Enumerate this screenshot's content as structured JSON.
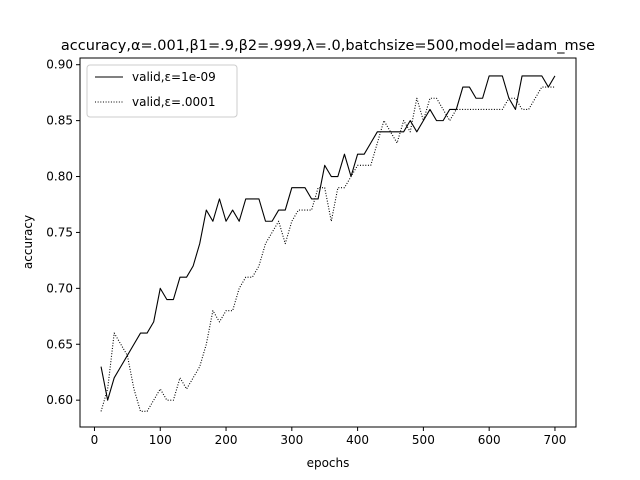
{
  "chart_data": {
    "type": "line",
    "title": "accuracy,α=.001,β1=.9,β2=.999,λ=.0,batchsize=500,model=adam_mse",
    "xlabel": "epochs",
    "ylabel": "accuracy",
    "xlim": [
      -22,
      732
    ],
    "ylim": [
      0.576,
      0.906
    ],
    "xticks": [
      0,
      100,
      200,
      300,
      400,
      500,
      600,
      700
    ],
    "yticks": [
      0.6,
      0.65,
      0.7,
      0.75,
      0.8,
      0.85,
      0.9
    ],
    "ytick_labels": [
      "0.60",
      "0.65",
      "0.70",
      "0.75",
      "0.80",
      "0.85",
      "0.90"
    ],
    "grid": false,
    "legend_position": "top-left",
    "x": [
      10,
      20,
      30,
      40,
      50,
      60,
      70,
      80,
      90,
      100,
      110,
      120,
      130,
      140,
      150,
      160,
      170,
      180,
      190,
      200,
      210,
      220,
      230,
      240,
      250,
      260,
      270,
      280,
      290,
      300,
      310,
      320,
      330,
      340,
      350,
      360,
      370,
      380,
      390,
      400,
      410,
      420,
      430,
      440,
      450,
      460,
      470,
      480,
      490,
      500,
      510,
      520,
      530,
      540,
      550,
      560,
      570,
      580,
      590,
      600,
      610,
      620,
      630,
      640,
      650,
      660,
      670,
      680,
      690,
      700
    ],
    "series": [
      {
        "name": "valid,ε=1e-09",
        "style": "solid",
        "color": "#000000",
        "values": [
          0.63,
          0.6,
          0.62,
          0.63,
          0.64,
          0.65,
          0.66,
          0.66,
          0.67,
          0.7,
          0.69,
          0.69,
          0.71,
          0.71,
          0.72,
          0.74,
          0.77,
          0.76,
          0.78,
          0.76,
          0.77,
          0.76,
          0.78,
          0.78,
          0.78,
          0.76,
          0.76,
          0.77,
          0.77,
          0.79,
          0.79,
          0.79,
          0.78,
          0.78,
          0.81,
          0.8,
          0.8,
          0.82,
          0.8,
          0.82,
          0.82,
          0.83,
          0.84,
          0.84,
          0.84,
          0.84,
          0.84,
          0.85,
          0.84,
          0.85,
          0.86,
          0.85,
          0.85,
          0.86,
          0.86,
          0.88,
          0.88,
          0.87,
          0.87,
          0.89,
          0.89,
          0.89,
          0.87,
          0.86,
          0.89,
          0.89,
          0.89,
          0.89,
          0.88,
          0.89
        ]
      },
      {
        "name": "valid,ε=.0001",
        "style": "dotted",
        "color": "#000000",
        "values": [
          0.59,
          0.61,
          0.66,
          0.65,
          0.64,
          0.61,
          0.59,
          0.59,
          0.6,
          0.61,
          0.6,
          0.6,
          0.62,
          0.61,
          0.62,
          0.63,
          0.65,
          0.68,
          0.67,
          0.68,
          0.68,
          0.7,
          0.71,
          0.71,
          0.72,
          0.74,
          0.75,
          0.76,
          0.74,
          0.76,
          0.77,
          0.77,
          0.77,
          0.79,
          0.79,
          0.76,
          0.79,
          0.79,
          0.8,
          0.81,
          0.81,
          0.81,
          0.83,
          0.85,
          0.84,
          0.83,
          0.85,
          0.84,
          0.87,
          0.85,
          0.87,
          0.87,
          0.86,
          0.85,
          0.86,
          0.86,
          0.86,
          0.86,
          0.86,
          0.86,
          0.86,
          0.86,
          0.87,
          0.87,
          0.86,
          0.86,
          0.87,
          0.88,
          0.88,
          0.88
        ]
      }
    ]
  }
}
